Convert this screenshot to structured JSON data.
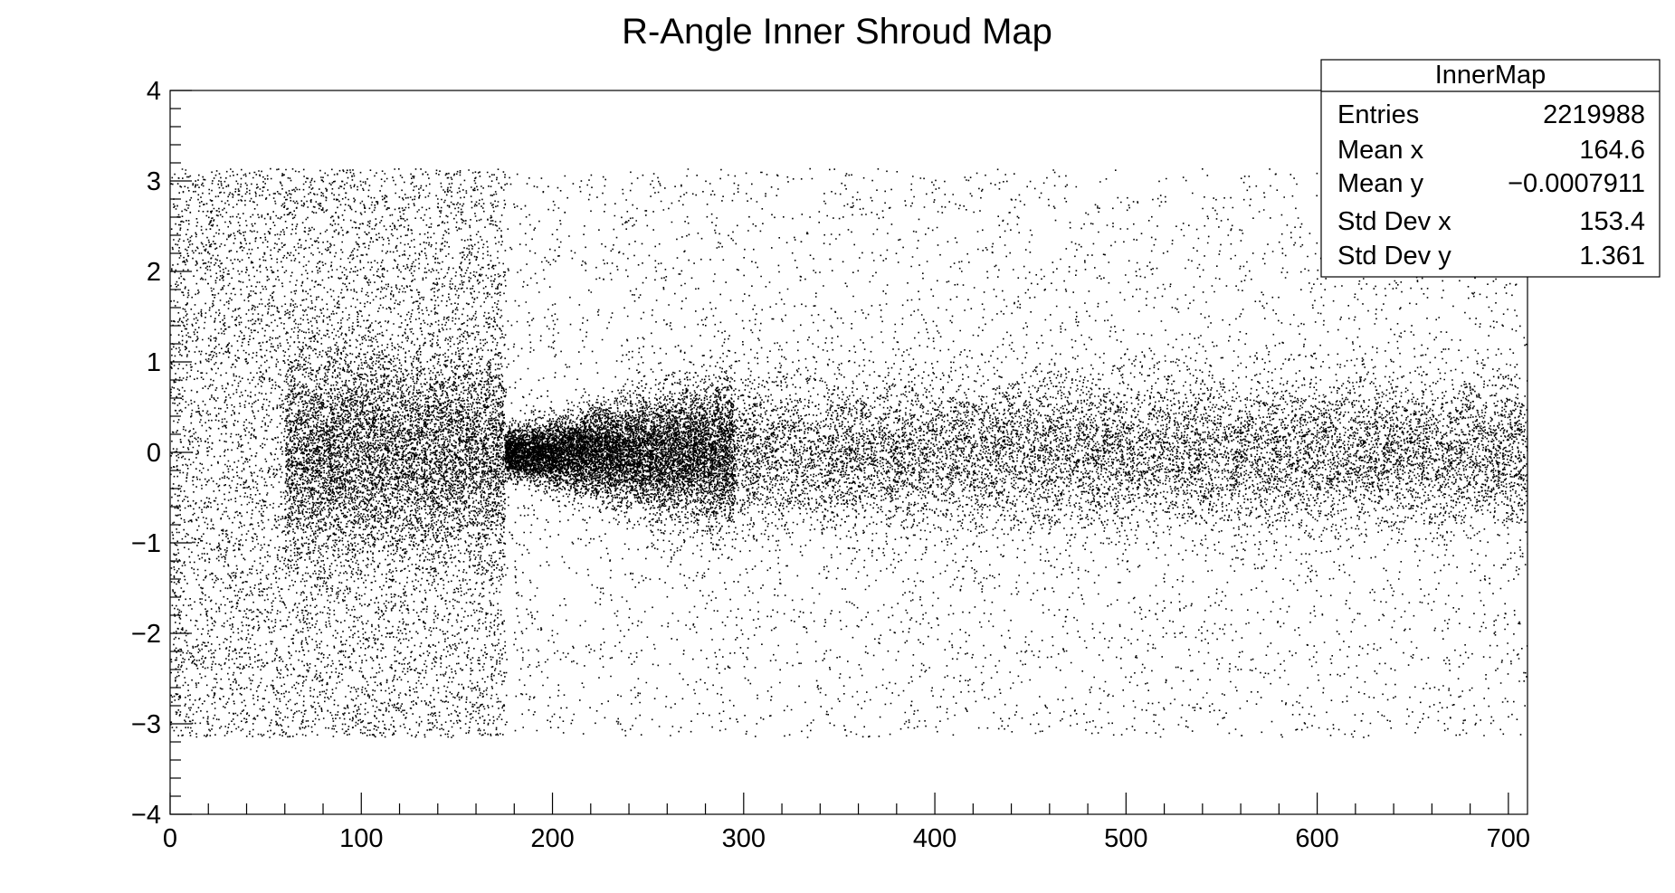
{
  "chart_data": {
    "type": "scatter",
    "title": "R-Angle Inner Shroud Map",
    "xlabel": "",
    "ylabel": "",
    "xlim": [
      0,
      710
    ],
    "ylim": [
      -4,
      4
    ],
    "x_ticks": [
      0,
      100,
      200,
      300,
      400,
      500,
      600,
      700
    ],
    "y_ticks": [
      -4,
      -3,
      -2,
      -1,
      0,
      1,
      2,
      3,
      4
    ],
    "x_tick_labels": [
      "0",
      "100",
      "200",
      "300",
      "400",
      "500",
      "600",
      "700"
    ],
    "y_tick_labels": [
      "−4",
      "−3",
      "−2",
      "−1",
      "0",
      "1",
      "2",
      "3",
      "4"
    ],
    "grid": false,
    "marker_color": "#000000",
    "regions": [
      {
        "x_range": [
          0,
          175
        ],
        "y_range": [
          -3.14,
          3.14
        ],
        "density": "very high, uniform in y, denser near 0"
      },
      {
        "x_range": [
          175,
          295
        ],
        "y_range": [
          -3.14,
          3.14
        ],
        "density": "low background with dense core at y = 0 widening from ±0.25 to ±0.6"
      },
      {
        "x_range": [
          295,
          710
        ],
        "y_range": [
          -3.14,
          3.14
        ],
        "density": "low background with moderate band at y = 0 of half-width about 0.8"
      }
    ],
    "stats_box": {
      "name": "InnerMap",
      "location": "top-right",
      "rows": [
        {
          "label": "Entries",
          "value": "2219988"
        },
        {
          "label": "Mean x",
          "value": "164.6"
        },
        {
          "label": "Mean y",
          "value": "−0.0007911"
        },
        {
          "label": "Std Dev x",
          "value": "153.4"
        },
        {
          "label": "Std Dev y",
          "value": "1.361"
        }
      ]
    }
  }
}
